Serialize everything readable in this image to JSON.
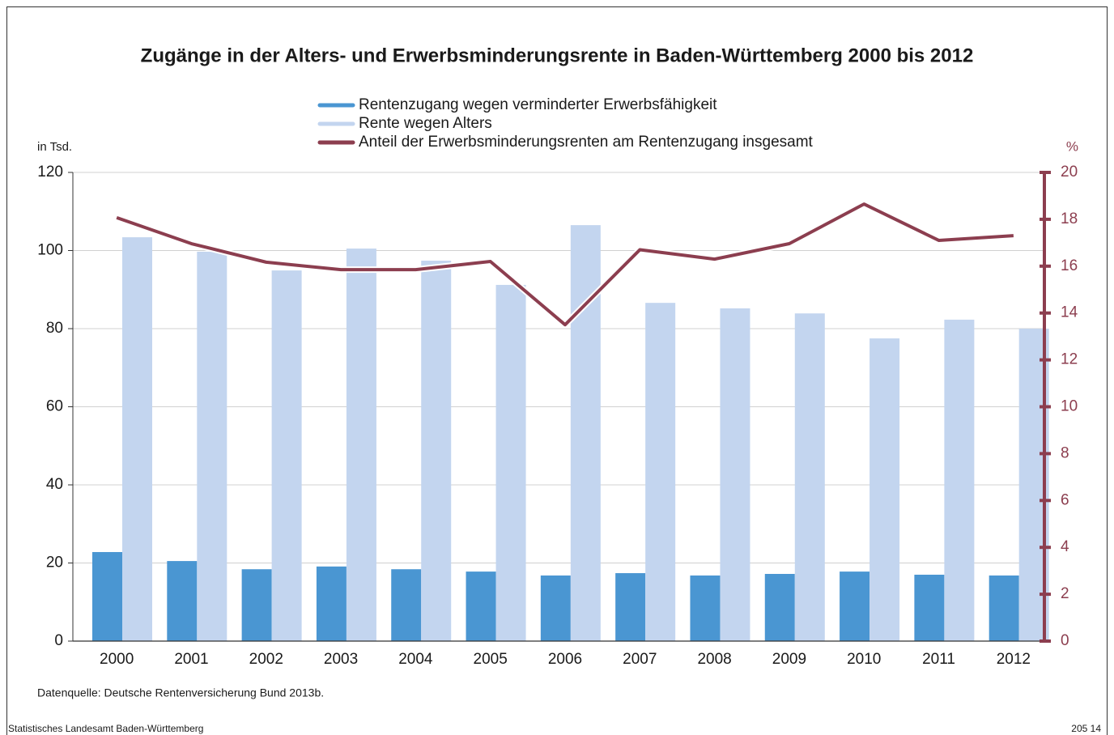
{
  "chart_data": {
    "type": "bar",
    "title": "Zugänge in der Alters- und Erwerbsminderungsrente in Baden-Württemberg 2000 bis 2012",
    "y_label": "in Tsd.",
    "y2_label": "%",
    "source": "Datenquelle: Deutsche Rentenversicherung Bund 2013b.",
    "footer_left": "Statistisches Landesamt Baden-Württemberg",
    "footer_right": "205 14",
    "categories": [
      "2000",
      "2001",
      "2002",
      "2003",
      "2004",
      "2005",
      "2006",
      "2007",
      "2008",
      "2009",
      "2010",
      "2011",
      "2012"
    ],
    "series": [
      {
        "name": "Rentenzugang wegen verminderter Erwerbsfähigkeit",
        "type": "bar",
        "color": "#4a96d2",
        "values": [
          22.8,
          20.5,
          18.4,
          19.1,
          18.4,
          17.8,
          16.8,
          17.4,
          16.8,
          17.2,
          17.8,
          17.0,
          16.8
        ]
      },
      {
        "name": "Rente wegen Alters",
        "type": "bar",
        "color": "#c3d5ef",
        "values": [
          103.4,
          99.7,
          94.9,
          100.5,
          97.4,
          91.2,
          106.5,
          86.6,
          85.2,
          83.9,
          77.5,
          82.3,
          80.0
        ]
      },
      {
        "name": "Anteil der Erwerbsminderungsrenten am Rentenzugang insgesamt",
        "type": "line",
        "axis": "y2",
        "color": "#8c3e4f",
        "values": [
          18.07,
          16.96,
          16.17,
          15.85,
          15.85,
          16.2,
          13.5,
          16.7,
          16.3,
          16.96,
          18.65,
          17.1,
          17.3
        ]
      }
    ],
    "ylim": [
      0,
      120
    ],
    "yticks": [
      0,
      20,
      40,
      60,
      80,
      100,
      120
    ],
    "y2lim": [
      0,
      20
    ],
    "y2ticks": [
      0,
      2,
      4,
      6,
      8,
      10,
      12,
      14,
      16,
      18,
      20
    ],
    "grid": true
  }
}
